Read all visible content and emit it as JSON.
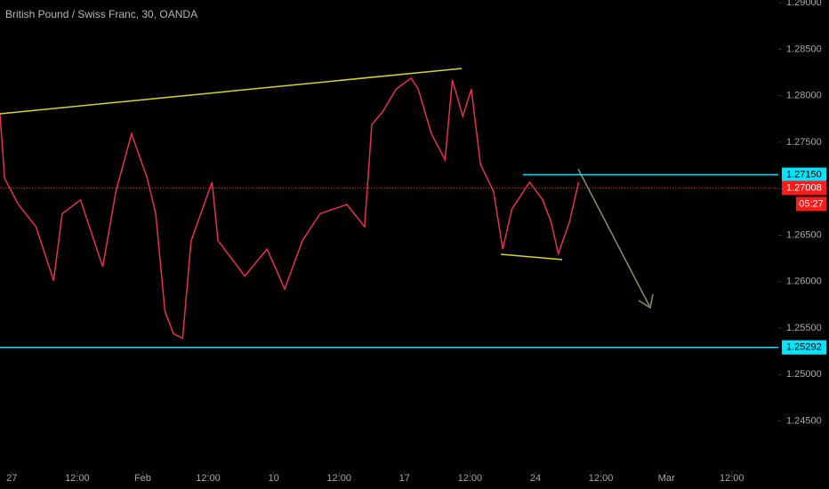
{
  "chart_data": {
    "type": "line",
    "title": "British Pound / Swiss Franc, 30, OANDA",
    "xlim": [
      -0.18,
      11.71
    ],
    "xticks": [
      {
        "value": 0,
        "label": "27"
      },
      {
        "value": 1,
        "label": "12:00"
      },
      {
        "value": 2,
        "label": "Feb"
      },
      {
        "value": 3,
        "label": "12:00"
      },
      {
        "value": 4,
        "label": "10"
      },
      {
        "value": 5,
        "label": "12:00"
      },
      {
        "value": 6,
        "label": "17"
      },
      {
        "value": 7,
        "label": "12:00"
      },
      {
        "value": 8,
        "label": "24"
      },
      {
        "value": 9,
        "label": "12:00"
      },
      {
        "value": 10,
        "label": "Mar"
      },
      {
        "value": 11,
        "label": "12:00"
      }
    ],
    "ylim": [
      1.2396,
      1.2903
    ],
    "yticks": [
      {
        "value": 1.245,
        "label": "1.24500"
      },
      {
        "value": 1.25,
        "label": "1.25000"
      },
      {
        "value": 1.255,
        "label": "1.25500"
      },
      {
        "value": 1.26,
        "label": "1.26000"
      },
      {
        "value": 1.265,
        "label": "1.26500"
      },
      {
        "value": 1.27,
        "label": "1.27000"
      },
      {
        "value": 1.275,
        "label": "1.27500"
      },
      {
        "value": 1.28,
        "label": "1.28000"
      },
      {
        "value": 1.285,
        "label": "1.28500"
      },
      {
        "value": 1.29,
        "label": "1.29000"
      }
    ],
    "series": [
      {
        "color": "#e8304a",
        "x": [
          -0.18,
          -0.11,
          0.1,
          0.37,
          0.64,
          0.77,
          1.05,
          1.39,
          1.59,
          1.83,
          2.07,
          2.2,
          2.34,
          2.47,
          2.61,
          2.74,
          3.06,
          3.15,
          3.56,
          3.9,
          4.17,
          4.44,
          4.71,
          5.12,
          5.39,
          5.5,
          5.67,
          5.87,
          6.1,
          6.21,
          6.41,
          6.62,
          6.73,
          6.89,
          7.02,
          7.16,
          7.36,
          7.5,
          7.64,
          7.91,
          8.11,
          8.24,
          8.35,
          8.52,
          8.66
        ],
        "values": [
          1.278,
          1.2711,
          1.2683,
          1.2659,
          1.2601,
          1.2673,
          1.2688,
          1.2616,
          1.2697,
          1.2759,
          1.2711,
          1.2673,
          1.2568,
          1.2544,
          1.2539,
          1.2644,
          1.2707,
          1.2644,
          1.2606,
          1.2635,
          1.2592,
          1.2644,
          1.2673,
          1.2683,
          1.2659,
          1.2769,
          1.2783,
          1.2807,
          1.2819,
          1.2807,
          1.2759,
          1.2731,
          1.2817,
          1.2778,
          1.2807,
          1.2726,
          1.2697,
          1.2635,
          1.2678,
          1.2707,
          1.2688,
          1.2664,
          1.263,
          1.2664,
          1.2707
        ]
      }
    ],
    "horizontal_lines": [
      {
        "value": 1.2715,
        "label": "1.27150",
        "color": "#00e5ff"
      },
      {
        "value": 1.25292,
        "label": "1.25292",
        "color": "#00e5ff"
      }
    ],
    "current_price": {
      "value": 1.27008,
      "label": "1.27008",
      "color": "#ff1a1a"
    },
    "countdown": "05:27"
  }
}
